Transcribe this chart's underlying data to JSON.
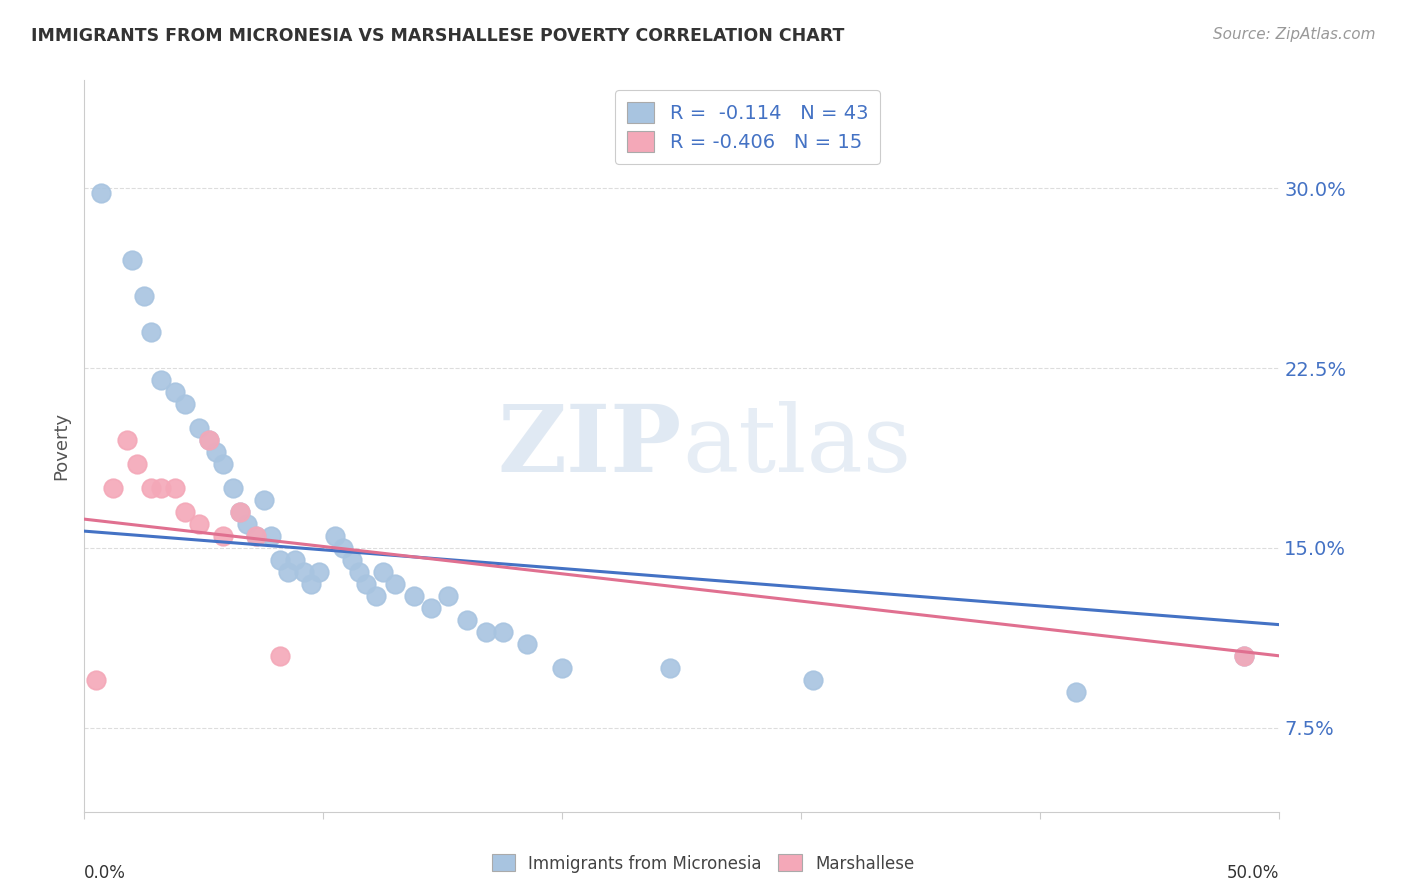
{
  "title": "IMMIGRANTS FROM MICRONESIA VS MARSHALLESE POVERTY CORRELATION CHART",
  "source": "Source: ZipAtlas.com",
  "ylabel": "Poverty",
  "yticks": [
    0.075,
    0.15,
    0.225,
    0.3
  ],
  "ytick_labels": [
    "7.5%",
    "15.0%",
    "22.5%",
    "30.0%"
  ],
  "xlim": [
    0.0,
    0.5
  ],
  "ylim": [
    0.04,
    0.345
  ],
  "blue_R": "-0.114",
  "blue_N": "43",
  "pink_R": "-0.406",
  "pink_N": "15",
  "blue_color": "#a8c4e0",
  "pink_color": "#f4a8b8",
  "blue_line_color": "#4472c4",
  "pink_line_color": "#e07090",
  "watermark_zip": "ZIP",
  "watermark_atlas": "atlas",
  "blue_scatter_x": [
    0.007,
    0.02,
    0.025,
    0.028,
    0.032,
    0.038,
    0.042,
    0.048,
    0.052,
    0.055,
    0.058,
    0.062,
    0.065,
    0.068,
    0.072,
    0.075,
    0.078,
    0.082,
    0.085,
    0.088,
    0.092,
    0.095,
    0.098,
    0.105,
    0.108,
    0.112,
    0.115,
    0.118,
    0.122,
    0.125,
    0.13,
    0.138,
    0.145,
    0.152,
    0.16,
    0.168,
    0.175,
    0.185,
    0.2,
    0.245,
    0.305,
    0.415,
    0.485
  ],
  "blue_scatter_y": [
    0.298,
    0.27,
    0.255,
    0.24,
    0.22,
    0.215,
    0.21,
    0.2,
    0.195,
    0.19,
    0.185,
    0.175,
    0.165,
    0.16,
    0.155,
    0.17,
    0.155,
    0.145,
    0.14,
    0.145,
    0.14,
    0.135,
    0.14,
    0.155,
    0.15,
    0.145,
    0.14,
    0.135,
    0.13,
    0.14,
    0.135,
    0.13,
    0.125,
    0.13,
    0.12,
    0.115,
    0.115,
    0.11,
    0.1,
    0.1,
    0.095,
    0.09,
    0.105
  ],
  "pink_scatter_x": [
    0.005,
    0.012,
    0.018,
    0.022,
    0.028,
    0.032,
    0.038,
    0.042,
    0.048,
    0.052,
    0.058,
    0.065,
    0.072,
    0.082,
    0.485
  ],
  "pink_scatter_y": [
    0.095,
    0.175,
    0.195,
    0.185,
    0.175,
    0.175,
    0.175,
    0.165,
    0.16,
    0.195,
    0.155,
    0.165,
    0.155,
    0.105,
    0.105
  ],
  "blue_line_x": [
    0.0,
    0.5
  ],
  "blue_line_y_start": 0.157,
  "blue_line_y_end": 0.118,
  "pink_line_x": [
    0.0,
    0.5
  ],
  "pink_line_y_start": 0.162,
  "pink_line_y_end": 0.105,
  "xtick_positions": [
    0.0,
    0.1,
    0.2,
    0.3,
    0.4,
    0.5
  ],
  "grid_color": "#dddddd",
  "spine_color": "#cccccc",
  "title_color": "#333333",
  "source_color": "#999999",
  "ylabel_color": "#555555"
}
